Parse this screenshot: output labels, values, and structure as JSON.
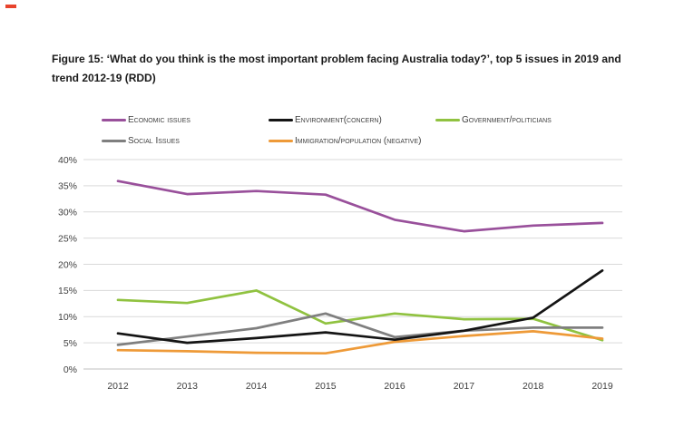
{
  "page": {
    "title": "Figure 15: ‘What do you think is the most important problem facing Australia today?’, top 5 issues in 2019 and trend 2012-19 (RDD)"
  },
  "legend": {
    "items": [
      {
        "label": "Economic issues",
        "color": "#99509B"
      },
      {
        "label": "Environment(concern)",
        "color": "#141414"
      },
      {
        "label": "Government/politicians",
        "color": "#90C240"
      },
      {
        "label": "Social Issues",
        "color": "#7F7F7F"
      },
      {
        "label": "Immigration/population (negative)",
        "color": "#EE9A38"
      }
    ]
  },
  "chart_data": {
    "type": "line",
    "x": [
      "2012",
      "2013",
      "2014",
      "2015",
      "2016",
      "2017",
      "2018",
      "2019"
    ],
    "series": [
      {
        "name": "Economic issues",
        "color": "#99509B",
        "values": [
          35.9,
          33.4,
          34.0,
          33.3,
          28.5,
          26.3,
          27.4,
          27.9
        ]
      },
      {
        "name": "Environment(concern)",
        "color": "#141414",
        "values": [
          6.8,
          5.0,
          5.9,
          7.0,
          5.6,
          7.3,
          9.8,
          18.8
        ]
      },
      {
        "name": "Government/politicians",
        "color": "#90C240",
        "values": [
          13.2,
          12.6,
          15.0,
          8.7,
          10.6,
          9.5,
          9.6,
          5.5
        ]
      },
      {
        "name": "Social Issues",
        "color": "#7F7F7F",
        "values": [
          4.6,
          6.2,
          7.8,
          10.6,
          6.1,
          7.3,
          7.9,
          7.9
        ]
      },
      {
        "name": "Immigration/population (negative)",
        "color": "#EE9A38",
        "values": [
          3.6,
          3.4,
          3.1,
          3.0,
          5.2,
          6.3,
          7.2,
          5.8
        ]
      }
    ],
    "yticks": [
      "0%",
      "5%",
      "10%",
      "15%",
      "20%",
      "25%",
      "30%",
      "35%",
      "40%"
    ],
    "ylim": [
      0,
      40
    ],
    "grid": "horizontal",
    "legend_position": "top"
  },
  "colors": {
    "grid": "#D9D9D9",
    "baseline": "#BFBFBF",
    "axis_text": "#404040",
    "title_text": "#1A1A1A",
    "corner_mark": "#E8432C"
  }
}
